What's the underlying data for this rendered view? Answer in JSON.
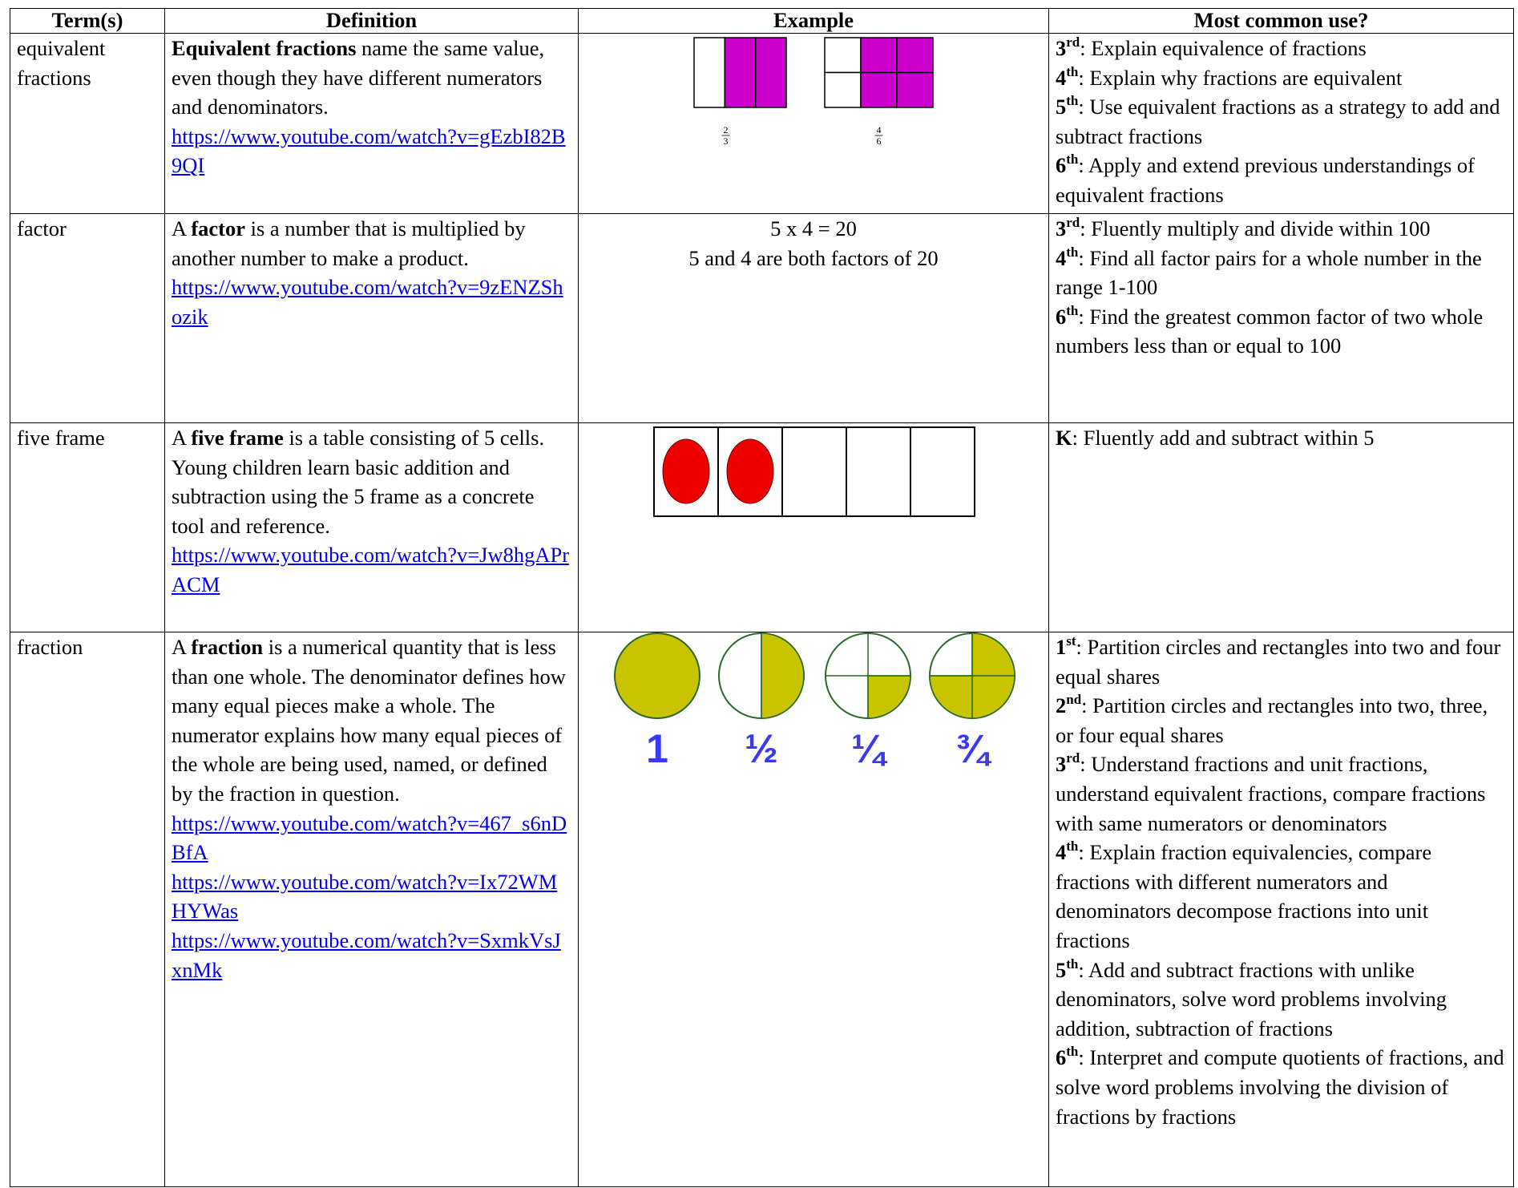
{
  "table": {
    "headers": [
      "Term(s)",
      "Definition",
      "Example",
      "Most common use?"
    ],
    "rows": [
      {
        "term": "equivalent fractions",
        "definition": {
          "before": "",
          "term": "Equivalent fractions",
          "after": " name the same value, even though they have different numerators and denominators."
        },
        "links": [
          "https://www.youtube.com/watch?v=gEzbI82B9QI"
        ],
        "example": {
          "fractions": [
            {
              "numerator": 2,
              "denominator": 3
            },
            {
              "numerator": 4,
              "denominator": 6
            }
          ]
        },
        "uses": [
          {
            "grade": "3",
            "suffix": "rd",
            "text": ":  Explain equivalence of fractions"
          },
          {
            "grade": "4",
            "suffix": "th",
            "text": ":  Explain why fractions are equivalent"
          },
          {
            "grade": "5",
            "suffix": "th",
            "text": ":  Use equivalent fractions as a strategy to add and subtract fractions"
          },
          {
            "grade": "6",
            "suffix": "th",
            "text": ":  Apply and extend previous understandings of equivalent fractions"
          }
        ]
      },
      {
        "term": "factor",
        "definition": {
          "before": "A ",
          "term": "factor",
          "after": " is a number that is multiplied by another number to make a product."
        },
        "links": [
          "https://www.youtube.com/watch?v=9zENZShozik"
        ],
        "example": {
          "lines": [
            "5 x 4 = 20",
            "5 and 4 are both factors of 20"
          ]
        },
        "uses": [
          {
            "grade": "3",
            "suffix": "rd",
            "text": ":  Fluently multiply and divide within 100"
          },
          {
            "grade": "4",
            "suffix": "th",
            "text": ":  Find all factor pairs for a whole number in the range 1-100"
          },
          {
            "grade": "6",
            "suffix": "th",
            "text": ":  Find the greatest common factor of two whole numbers less than or equal to 100"
          }
        ]
      },
      {
        "term": "five frame",
        "definition": {
          "before": "A ",
          "term": "five frame",
          "after": " is a table consisting of 5 cells.  Young children learn basic addition and subtraction using the 5 frame as a concrete tool and reference."
        },
        "links": [
          "https://www.youtube.com/watch?v=Jw8hgAPrACM"
        ],
        "uses": [
          {
            "grade": "K",
            "suffix": "",
            "text": ":  Fluently add and subtract within 5"
          }
        ]
      },
      {
        "term": "fraction",
        "definition": {
          "before": "A ",
          "term": "fraction",
          "after": " is a numerical quantity that is less than one whole.  The denominator defines how many equal pieces make a whole.  The numerator explains how many equal pieces of the whole are being used, named, or defined by the fraction in question."
        },
        "links": [
          "https://www.youtube.com/watch?v=467_s6nDBfA",
          "https://www.youtube.com/watch?v=Ix72WMHYWas",
          "https://www.youtube.com/watch?v=SxmkVsJxnMk"
        ],
        "example": {
          "labels": [
            "1",
            "½",
            "¼",
            "¾"
          ]
        },
        "uses": [
          {
            "grade": "1",
            "suffix": "st",
            "text": ":  Partition circles and rectangles into two and four equal shares"
          },
          {
            "grade": "2",
            "suffix": "nd",
            "text": ":  Partition circles and rectangles into two, three, or four equal shares"
          },
          {
            "grade": "3",
            "suffix": "rd",
            "text": ":  Understand fractions and unit fractions, understand equivalent fractions, compare fractions with same numerators or denominators"
          },
          {
            "grade": "4",
            "suffix": "th",
            "text": ":  Explain fraction equivalencies, compare fractions with different numerators and denominators decompose fractions into unit fractions"
          },
          {
            "grade": "5",
            "suffix": "th",
            "text": ":  Add and subtract fractions with unlike denominators, solve word problems involving addition, subtraction of fractions"
          },
          {
            "grade": "6",
            "suffix": "th",
            "text": ":  Interpret and compute quotients of fractions, and solve word problems involving the division of fractions by fractions"
          }
        ]
      }
    ]
  }
}
